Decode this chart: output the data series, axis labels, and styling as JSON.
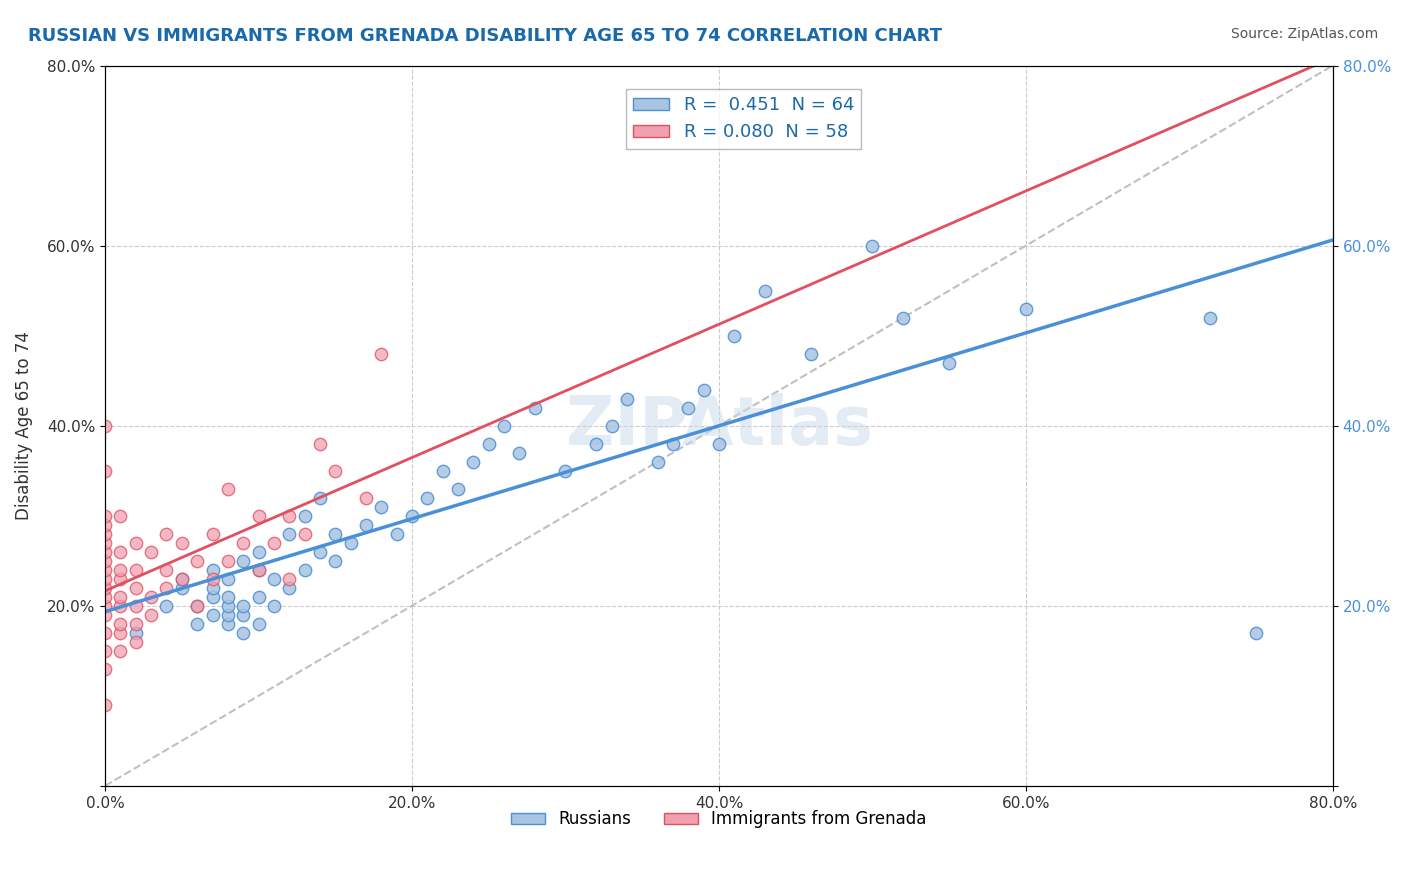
{
  "title": "RUSSIAN VS IMMIGRANTS FROM GRENADA DISABILITY AGE 65 TO 74 CORRELATION CHART",
  "source": "Source: ZipAtlas.com",
  "ylabel": "Disability Age 65 to 74",
  "xlabel": "",
  "xlim": [
    0.0,
    0.8
  ],
  "ylim": [
    0.0,
    0.8
  ],
  "xticks": [
    0.0,
    0.2,
    0.4,
    0.6,
    0.8
  ],
  "yticks": [
    0.0,
    0.2,
    0.4,
    0.6,
    0.8
  ],
  "xticklabels": [
    "0.0%",
    "20.0%",
    "40.0%",
    "60.0%",
    "80.0%"
  ],
  "yticklabels": [
    "",
    "20.0%",
    "40.0%",
    "60.0%",
    "80.0%"
  ],
  "legend_r1": "R =  0.451",
  "legend_n1": "N = 64",
  "legend_r2": "R = 0.080",
  "legend_n2": "N = 58",
  "color_russian": "#a8c4e0",
  "color_grenada": "#f0a0b0",
  "color_russian_line": "#4a90d9",
  "color_grenada_line": "#e05060",
  "color_diagonal": "#c0c0c0",
  "watermark": "ZIPAtlas",
  "title_color": "#1a6aaa",
  "source_color": "#555555",
  "russians_x": [
    0.02,
    0.04,
    0.05,
    0.05,
    0.06,
    0.06,
    0.07,
    0.07,
    0.07,
    0.07,
    0.08,
    0.08,
    0.08,
    0.08,
    0.08,
    0.09,
    0.09,
    0.09,
    0.09,
    0.1,
    0.1,
    0.1,
    0.1,
    0.11,
    0.11,
    0.12,
    0.12,
    0.13,
    0.13,
    0.14,
    0.14,
    0.15,
    0.15,
    0.16,
    0.17,
    0.18,
    0.19,
    0.2,
    0.21,
    0.22,
    0.23,
    0.24,
    0.25,
    0.26,
    0.27,
    0.28,
    0.3,
    0.32,
    0.33,
    0.34,
    0.36,
    0.37,
    0.38,
    0.39,
    0.4,
    0.41,
    0.43,
    0.46,
    0.5,
    0.52,
    0.55,
    0.6,
    0.72,
    0.75
  ],
  "russians_y": [
    0.17,
    0.2,
    0.22,
    0.23,
    0.18,
    0.2,
    0.19,
    0.21,
    0.22,
    0.24,
    0.18,
    0.19,
    0.2,
    0.21,
    0.23,
    0.17,
    0.19,
    0.2,
    0.25,
    0.18,
    0.21,
    0.24,
    0.26,
    0.2,
    0.23,
    0.22,
    0.28,
    0.24,
    0.3,
    0.26,
    0.32,
    0.25,
    0.28,
    0.27,
    0.29,
    0.31,
    0.28,
    0.3,
    0.32,
    0.35,
    0.33,
    0.36,
    0.38,
    0.4,
    0.37,
    0.42,
    0.35,
    0.38,
    0.4,
    0.43,
    0.36,
    0.38,
    0.42,
    0.44,
    0.38,
    0.5,
    0.55,
    0.48,
    0.6,
    0.52,
    0.47,
    0.53,
    0.52,
    0.17
  ],
  "grenada_x": [
    0.0,
    0.0,
    0.0,
    0.0,
    0.0,
    0.0,
    0.0,
    0.0,
    0.0,
    0.0,
    0.0,
    0.0,
    0.0,
    0.0,
    0.0,
    0.0,
    0.0,
    0.0,
    0.01,
    0.01,
    0.01,
    0.01,
    0.01,
    0.01,
    0.01,
    0.01,
    0.01,
    0.02,
    0.02,
    0.02,
    0.02,
    0.02,
    0.02,
    0.03,
    0.03,
    0.03,
    0.04,
    0.04,
    0.04,
    0.05,
    0.05,
    0.06,
    0.06,
    0.07,
    0.07,
    0.08,
    0.08,
    0.09,
    0.1,
    0.1,
    0.11,
    0.12,
    0.12,
    0.13,
    0.14,
    0.15,
    0.17,
    0.18
  ],
  "grenada_y": [
    0.09,
    0.13,
    0.15,
    0.17,
    0.19,
    0.2,
    0.21,
    0.22,
    0.23,
    0.24,
    0.25,
    0.26,
    0.27,
    0.28,
    0.29,
    0.3,
    0.35,
    0.4,
    0.15,
    0.17,
    0.18,
    0.2,
    0.21,
    0.23,
    0.24,
    0.26,
    0.3,
    0.16,
    0.18,
    0.2,
    0.22,
    0.24,
    0.27,
    0.19,
    0.21,
    0.26,
    0.22,
    0.24,
    0.28,
    0.23,
    0.27,
    0.2,
    0.25,
    0.23,
    0.28,
    0.25,
    0.33,
    0.27,
    0.24,
    0.3,
    0.27,
    0.23,
    0.3,
    0.28,
    0.38,
    0.35,
    0.32,
    0.48
  ]
}
